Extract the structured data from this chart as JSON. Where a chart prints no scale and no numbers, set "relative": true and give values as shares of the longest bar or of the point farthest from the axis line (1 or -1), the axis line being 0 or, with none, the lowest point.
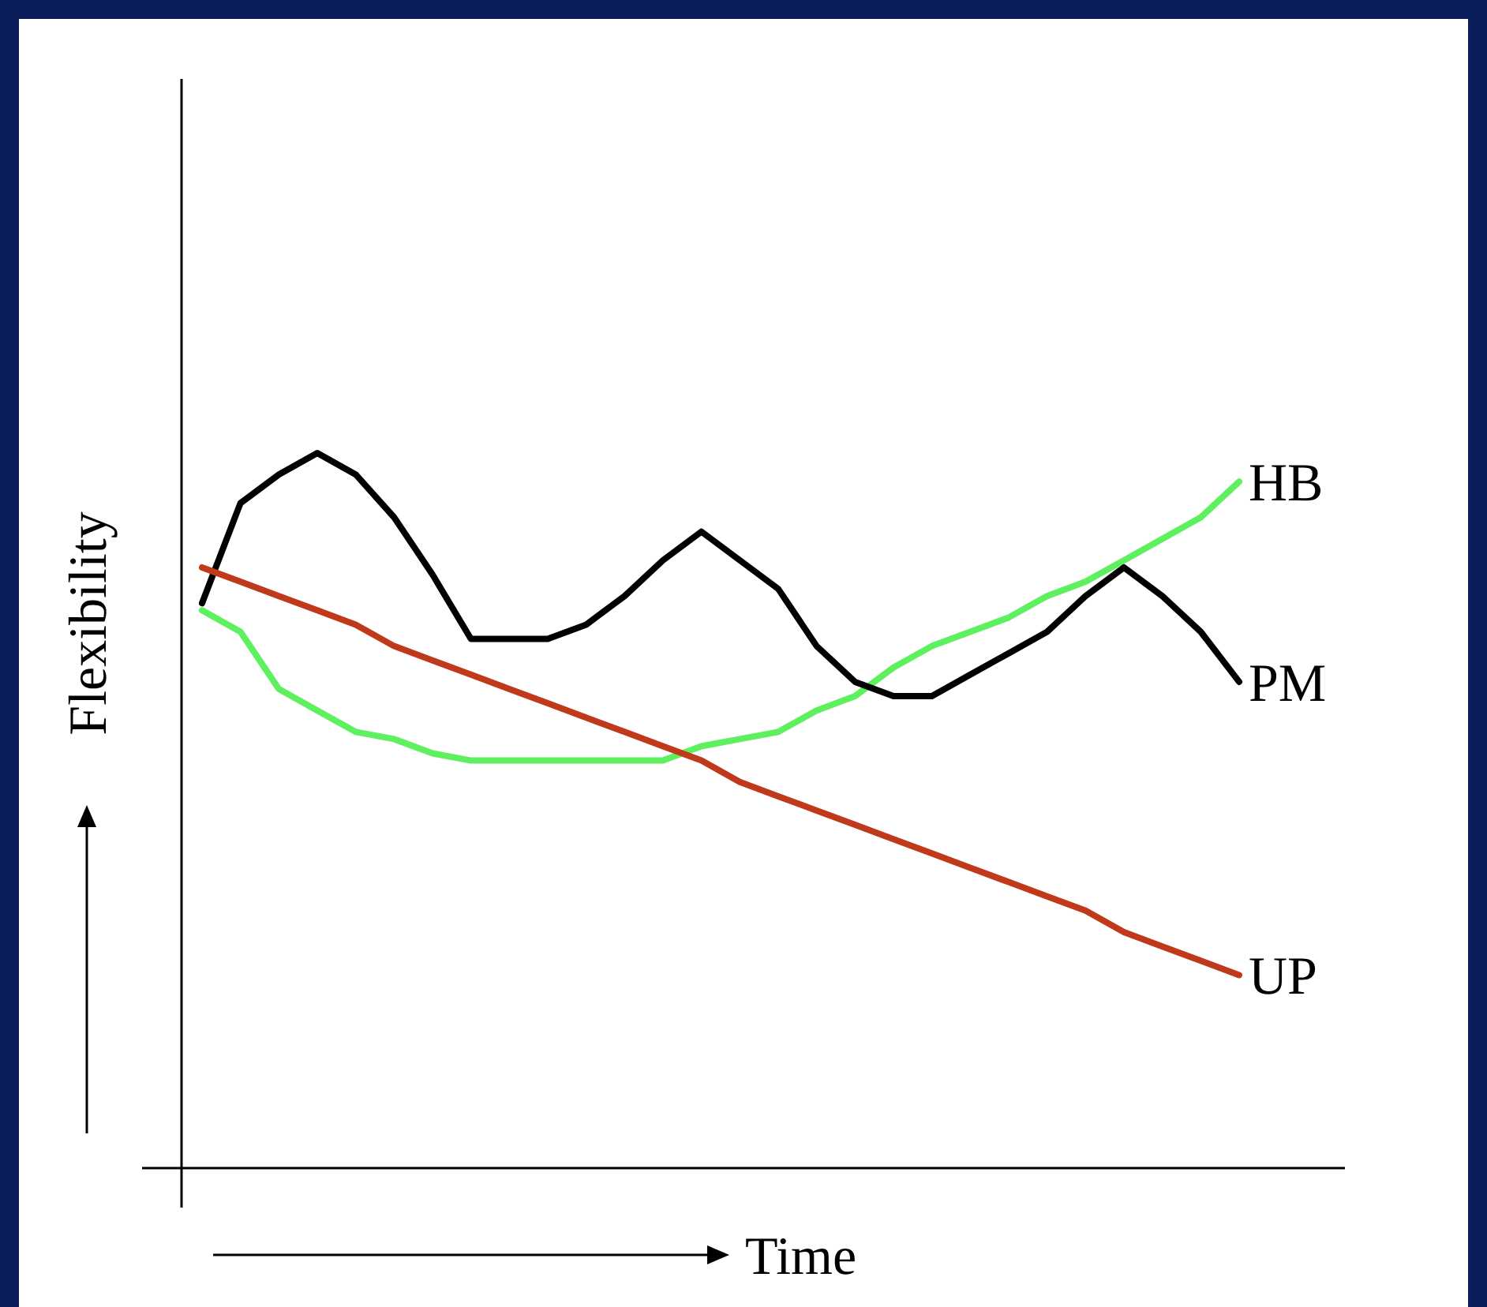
{
  "chart_data": {
    "type": "line",
    "relative": true,
    "xlabel": "Time",
    "ylabel": "Flexibility",
    "categories": [
      null,
      null,
      null,
      null,
      null,
      null,
      null,
      null,
      null,
      null,
      null,
      null,
      null,
      null,
      null,
      null,
      null,
      null,
      null,
      null,
      null,
      null,
      null,
      null,
      null,
      null,
      null,
      null
    ],
    "series": [
      {
        "name": "HB",
        "color": "#5ff05f",
        "values": [
          0.78,
          0.75,
          0.67,
          0.64,
          0.61,
          0.6,
          0.58,
          0.57,
          0.57,
          0.57,
          0.57,
          0.57,
          0.57,
          0.59,
          0.6,
          0.61,
          0.64,
          0.66,
          0.7,
          0.73,
          0.75,
          0.77,
          0.8,
          0.82,
          0.85,
          0.88,
          0.91,
          0.96
        ]
      },
      {
        "name": "PM",
        "color": "#000000",
        "values": [
          0.79,
          0.93,
          0.97,
          1.0,
          0.97,
          0.91,
          0.83,
          0.74,
          0.74,
          0.74,
          0.76,
          0.8,
          0.85,
          0.89,
          0.85,
          0.81,
          0.73,
          0.68,
          0.66,
          0.66,
          0.69,
          0.72,
          0.75,
          0.8,
          0.84,
          0.8,
          0.75,
          0.68
        ]
      },
      {
        "name": "UP",
        "color": "#c0391b",
        "values": [
          0.84,
          0.82,
          0.8,
          0.78,
          0.76,
          0.73,
          0.71,
          0.69,
          0.67,
          0.65,
          0.63,
          0.61,
          0.59,
          0.57,
          0.54,
          0.52,
          0.5,
          0.48,
          0.46,
          0.44,
          0.42,
          0.4,
          0.38,
          0.36,
          0.33,
          0.31,
          0.29,
          0.27
        ]
      }
    ]
  }
}
